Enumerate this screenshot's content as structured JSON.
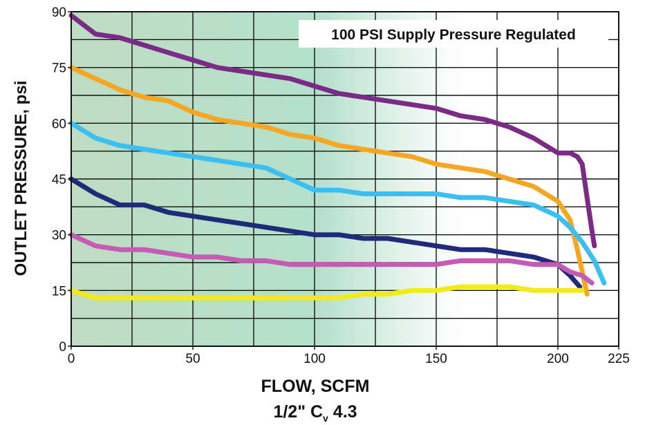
{
  "chart_data": {
    "type": "line",
    "annotation": "100 PSI Supply Pressure Regulated",
    "ylabel": "OUTLET PRESSURE, psi",
    "xlabel": "FLOW, SCFM",
    "xlabel2_main": "1/2\" C",
    "xlabel2_sub": "v",
    "xlabel2_tail": " 4.3",
    "xlim": [
      0,
      225
    ],
    "ylim": [
      0,
      90
    ],
    "xticks": [
      0,
      50,
      100,
      150,
      200,
      225
    ],
    "yticks": [
      0,
      15,
      30,
      45,
      60,
      75,
      90
    ],
    "grid": true,
    "background_gradient": "green-to-white left to right",
    "series": [
      {
        "color": "#7b2a86",
        "points": [
          [
            0,
            89
          ],
          [
            10,
            84
          ],
          [
            20,
            83
          ],
          [
            30,
            81
          ],
          [
            40,
            79
          ],
          [
            50,
            77
          ],
          [
            60,
            75
          ],
          [
            70,
            74
          ],
          [
            80,
            73
          ],
          [
            90,
            72
          ],
          [
            100,
            70
          ],
          [
            110,
            68
          ],
          [
            120,
            67
          ],
          [
            130,
            66
          ],
          [
            140,
            65
          ],
          [
            150,
            64
          ],
          [
            160,
            62
          ],
          [
            170,
            61
          ],
          [
            180,
            59
          ],
          [
            190,
            56
          ],
          [
            200,
            52
          ],
          [
            205,
            52
          ],
          [
            208,
            51
          ],
          [
            210,
            49
          ],
          [
            212,
            40
          ],
          [
            214,
            31
          ],
          [
            215,
            27
          ]
        ]
      },
      {
        "color": "#f5a623",
        "points": [
          [
            0,
            75
          ],
          [
            10,
            72
          ],
          [
            20,
            69
          ],
          [
            30,
            67
          ],
          [
            40,
            66
          ],
          [
            50,
            63
          ],
          [
            60,
            61
          ],
          [
            70,
            60
          ],
          [
            80,
            59
          ],
          [
            90,
            57
          ],
          [
            100,
            56
          ],
          [
            110,
            54
          ],
          [
            120,
            53
          ],
          [
            130,
            52
          ],
          [
            140,
            51
          ],
          [
            150,
            49
          ],
          [
            160,
            48
          ],
          [
            170,
            47
          ],
          [
            180,
            45
          ],
          [
            190,
            43
          ],
          [
            200,
            39
          ],
          [
            205,
            34
          ],
          [
            208,
            26
          ],
          [
            210,
            20
          ],
          [
            212,
            14
          ]
        ]
      },
      {
        "color": "#3bbef0",
        "points": [
          [
            0,
            60
          ],
          [
            10,
            56
          ],
          [
            20,
            54
          ],
          [
            30,
            53
          ],
          [
            40,
            52
          ],
          [
            50,
            51
          ],
          [
            60,
            50
          ],
          [
            70,
            49
          ],
          [
            80,
            48
          ],
          [
            90,
            45
          ],
          [
            100,
            42
          ],
          [
            110,
            42
          ],
          [
            120,
            41
          ],
          [
            130,
            41
          ],
          [
            140,
            41
          ],
          [
            150,
            41
          ],
          [
            160,
            40
          ],
          [
            170,
            40
          ],
          [
            180,
            39
          ],
          [
            190,
            38
          ],
          [
            200,
            35
          ],
          [
            205,
            32
          ],
          [
            210,
            28
          ],
          [
            215,
            23
          ],
          [
            219,
            17
          ]
        ]
      },
      {
        "color": "#1f2a78",
        "points": [
          [
            0,
            45
          ],
          [
            10,
            41
          ],
          [
            20,
            38
          ],
          [
            30,
            38
          ],
          [
            40,
            36
          ],
          [
            50,
            35
          ],
          [
            60,
            34
          ],
          [
            70,
            33
          ],
          [
            80,
            32
          ],
          [
            90,
            31
          ],
          [
            100,
            30
          ],
          [
            110,
            30
          ],
          [
            120,
            29
          ],
          [
            130,
            29
          ],
          [
            140,
            28
          ],
          [
            150,
            27
          ],
          [
            160,
            26
          ],
          [
            170,
            26
          ],
          [
            180,
            25
          ],
          [
            190,
            24
          ],
          [
            200,
            22
          ],
          [
            205,
            19
          ],
          [
            209,
            16
          ]
        ]
      },
      {
        "color": "#c65bb6",
        "points": [
          [
            0,
            30
          ],
          [
            10,
            27
          ],
          [
            20,
            26
          ],
          [
            30,
            26
          ],
          [
            40,
            25
          ],
          [
            50,
            24
          ],
          [
            60,
            24
          ],
          [
            70,
            23
          ],
          [
            80,
            23
          ],
          [
            90,
            22
          ],
          [
            100,
            22
          ],
          [
            110,
            22
          ],
          [
            120,
            22
          ],
          [
            130,
            22
          ],
          [
            140,
            22
          ],
          [
            150,
            22
          ],
          [
            160,
            23
          ],
          [
            170,
            23
          ],
          [
            180,
            23
          ],
          [
            190,
            22
          ],
          [
            200,
            22
          ],
          [
            205,
            20
          ],
          [
            210,
            19
          ],
          [
            214,
            17
          ]
        ]
      },
      {
        "color": "#f2ea1a",
        "points": [
          [
            0,
            15
          ],
          [
            10,
            13
          ],
          [
            20,
            13
          ],
          [
            30,
            13
          ],
          [
            40,
            13
          ],
          [
            50,
            13
          ],
          [
            60,
            13
          ],
          [
            70,
            13
          ],
          [
            80,
            13
          ],
          [
            90,
            13
          ],
          [
            100,
            13
          ],
          [
            110,
            13
          ],
          [
            120,
            14
          ],
          [
            130,
            14
          ],
          [
            140,
            15
          ],
          [
            150,
            15
          ],
          [
            160,
            16
          ],
          [
            170,
            16
          ],
          [
            180,
            16
          ],
          [
            190,
            15
          ],
          [
            200,
            15
          ],
          [
            205,
            15
          ],
          [
            210,
            15
          ]
        ]
      }
    ]
  }
}
